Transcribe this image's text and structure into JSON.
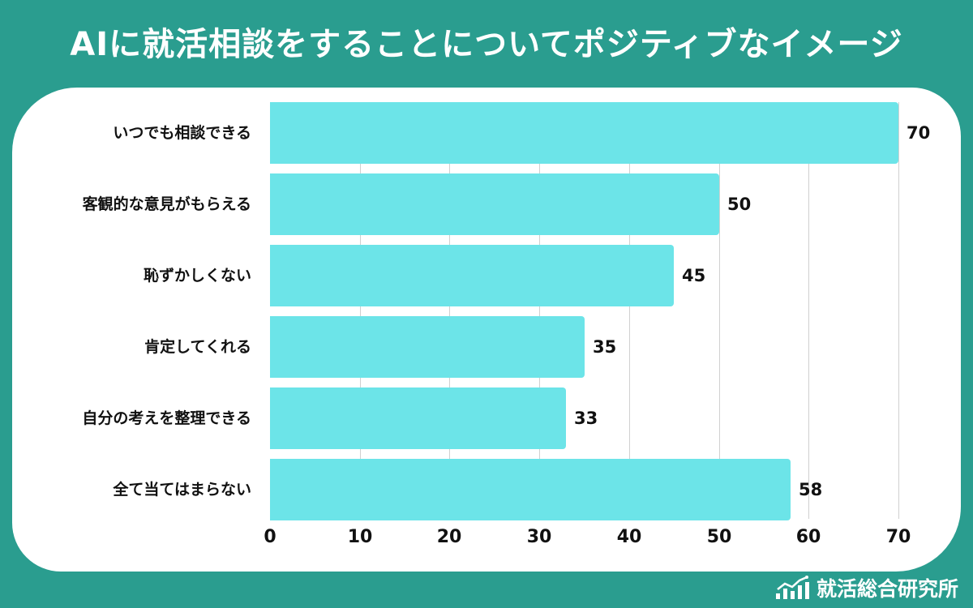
{
  "title": "AIに就活相談をすることについてポジティブなイメージ",
  "brand": {
    "name": "就活総合研究所",
    "icon": "bar-chart-trend-icon"
  },
  "colors": {
    "background": "#2a9d8f",
    "panel": "#ffffff",
    "bar": "#6ce4e8",
    "text": "#111111",
    "grid": "#d0d0d0"
  },
  "chart_data": {
    "type": "bar",
    "orientation": "horizontal",
    "title": "AIに就活相談をすることについてポジティブなイメージ",
    "categories": [
      "いつでも相談できる",
      "客観的な意見がもらえる",
      "恥ずかしくない",
      "肯定してくれる",
      "自分の考えを整理できる",
      "全て当てはまらない"
    ],
    "values": [
      70,
      50,
      45,
      35,
      33,
      58
    ],
    "xlabel": "",
    "ylabel": "",
    "xlim": [
      0,
      70
    ],
    "xticks": [
      "0",
      "10",
      "20",
      "30",
      "40",
      "50",
      "60",
      "70"
    ],
    "grid": true,
    "data_labels": true,
    "legend": null
  }
}
